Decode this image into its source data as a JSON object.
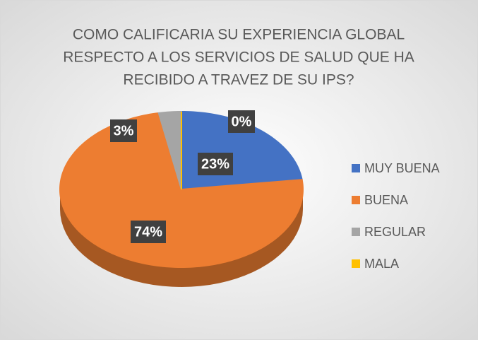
{
  "chart_data": {
    "type": "pie3d",
    "title": [
      "COMO CALIFICARIA SU EXPERIENCIA GLOBAL",
      "RESPECTO A LOS SERVICIOS DE SALUD QUE HA",
      "RECIBIDO A TRAVEZ DE SU IPS?"
    ],
    "categories": [
      "MUY BUENA",
      "BUENA",
      "REGULAR",
      "MALA"
    ],
    "values": [
      23,
      74,
      3,
      0
    ],
    "value_labels": [
      "23%",
      "74%",
      "3%",
      "0%"
    ],
    "colors": [
      "#4472c4",
      "#ed7d31",
      "#a5a5a5",
      "#ffc000"
    ],
    "legend": "right"
  }
}
